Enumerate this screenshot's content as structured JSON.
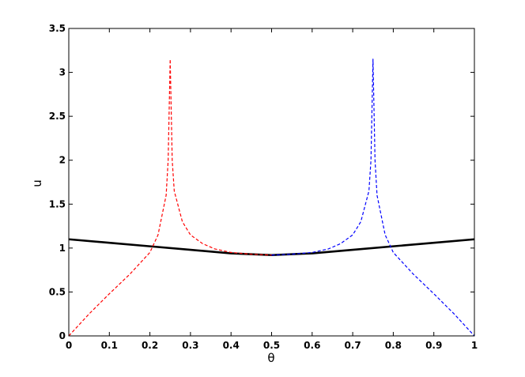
{
  "chart_data": {
    "type": "line",
    "title": "",
    "xlabel": "θ",
    "ylabel": "u",
    "xlim": [
      0,
      1
    ],
    "ylim": [
      0,
      3.5
    ],
    "grid": false,
    "x_ticks": [
      "0",
      "0.1",
      "0.2",
      "0.3",
      "0.4",
      "0.5",
      "0.6",
      "0.7",
      "0.8",
      "0.9",
      "1"
    ],
    "y_ticks": [
      "0",
      "0.5",
      "1",
      "1.5",
      "2",
      "2.5",
      "3",
      "3.5"
    ],
    "series": [
      {
        "color": "#000000",
        "style": "solid",
        "x": [
          0,
          0.1,
          0.2,
          0.3,
          0.4,
          0.5,
          0.6,
          0.7,
          0.8,
          0.9,
          1
        ],
        "y": [
          1.1,
          1.06,
          1.02,
          0.98,
          0.94,
          0.92,
          0.94,
          0.98,
          1.02,
          1.06,
          1.1
        ]
      },
      {
        "color": "#ff0000",
        "style": "dashed",
        "x": [
          0,
          0.05,
          0.1,
          0.15,
          0.2,
          0.22,
          0.24,
          0.245,
          0.25,
          0.255,
          0.26,
          0.28,
          0.3,
          0.33,
          0.36,
          0.4,
          0.45,
          0.5
        ],
        "y": [
          0,
          0.25,
          0.48,
          0.7,
          0.95,
          1.15,
          1.6,
          2.0,
          3.15,
          2.0,
          1.65,
          1.3,
          1.15,
          1.05,
          0.99,
          0.95,
          0.93,
          0.92
        ]
      },
      {
        "color": "#0000ff",
        "style": "dashed",
        "x": [
          0.5,
          0.55,
          0.6,
          0.64,
          0.67,
          0.7,
          0.72,
          0.74,
          0.745,
          0.75,
          0.755,
          0.76,
          0.78,
          0.8,
          0.85,
          0.9,
          0.95,
          1
        ],
        "y": [
          0.92,
          0.93,
          0.95,
          0.99,
          1.05,
          1.15,
          1.3,
          1.65,
          2.0,
          3.15,
          2.0,
          1.6,
          1.15,
          0.95,
          0.7,
          0.48,
          0.25,
          0
        ]
      }
    ]
  }
}
